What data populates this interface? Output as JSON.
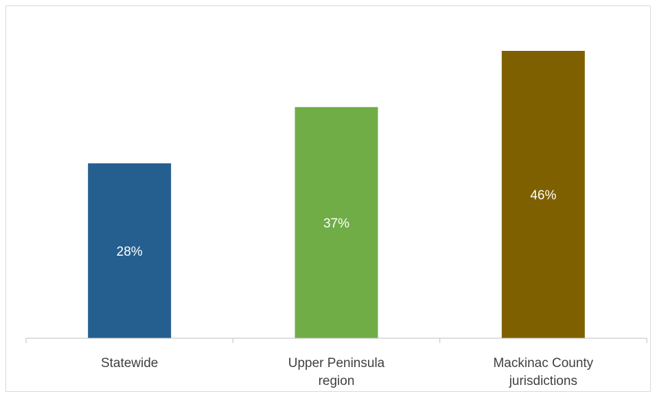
{
  "chart_data": {
    "type": "bar",
    "title": "",
    "xlabel": "",
    "ylabel": "",
    "ylim": [
      0,
      50
    ],
    "grid": false,
    "legend": "none",
    "categories": [
      [
        "Statewide"
      ],
      [
        "Upper Peninsula",
        "region"
      ],
      [
        "Mackinac County",
        "jurisdictions"
      ]
    ],
    "values": [
      28,
      37,
      46
    ],
    "data_labels": [
      "28%",
      "37%",
      "46%"
    ],
    "colors": [
      "#245F8F",
      "#70AD47",
      "#7F6000"
    ]
  }
}
